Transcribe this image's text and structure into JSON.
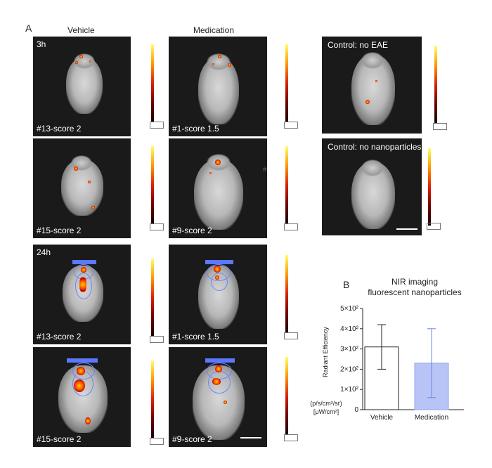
{
  "figure": {
    "panel_a_label": "A",
    "panel_b_label": "B",
    "col_vehicle": "Vehicle",
    "col_medication": "Medication",
    "time_3h": "3h",
    "time_24h": "24h",
    "hash_mark": "#",
    "captions": {
      "r1_vehicle": "#13-score 2",
      "r1_medication": "#1-score 1.5",
      "r2_vehicle": "#15-score 2",
      "r2_medication": "#9-score 2",
      "r3_vehicle": "#13-score 2",
      "r3_medication": "#1-score 1.5",
      "r4_vehicle": "#15-score 2",
      "r4_medication": "#9-score 2"
    },
    "controls": {
      "no_eae": "Control: no EAE",
      "no_nanoparticles": "Control: no nanoparticles"
    },
    "colors": {
      "bar_vehicle": "#ffffff",
      "bar_medication": "#b8c4f5",
      "bar_medication_edge": "#8fa3ee",
      "errbar_medication": "#6a84e8",
      "roi": "#6a86ff"
    }
  },
  "chart_data": {
    "type": "bar",
    "title": "NIR imaging fluorescent nanoparticles",
    "title_line1": "NIR imaging",
    "title_line2": "fluorescent nanoparticles",
    "categories": [
      "Vehicle",
      "Medication"
    ],
    "values": [
      310,
      230
    ],
    "error_low": [
      200,
      60
    ],
    "error_high": [
      420,
      400
    ],
    "ylim": [
      0,
      500
    ],
    "yticks": [
      0,
      100,
      200,
      300,
      400,
      500
    ],
    "ytick_labels": [
      "0",
      "1×10²",
      "2×10²",
      "3×10²",
      "4×10²",
      "5×10²"
    ],
    "ylabel": "Radiant Efficiency",
    "ylabel_units_line1": "(p/s/cm²/sr)",
    "ylabel_units_line2": "[μW/cm²]",
    "xlabel": ""
  }
}
